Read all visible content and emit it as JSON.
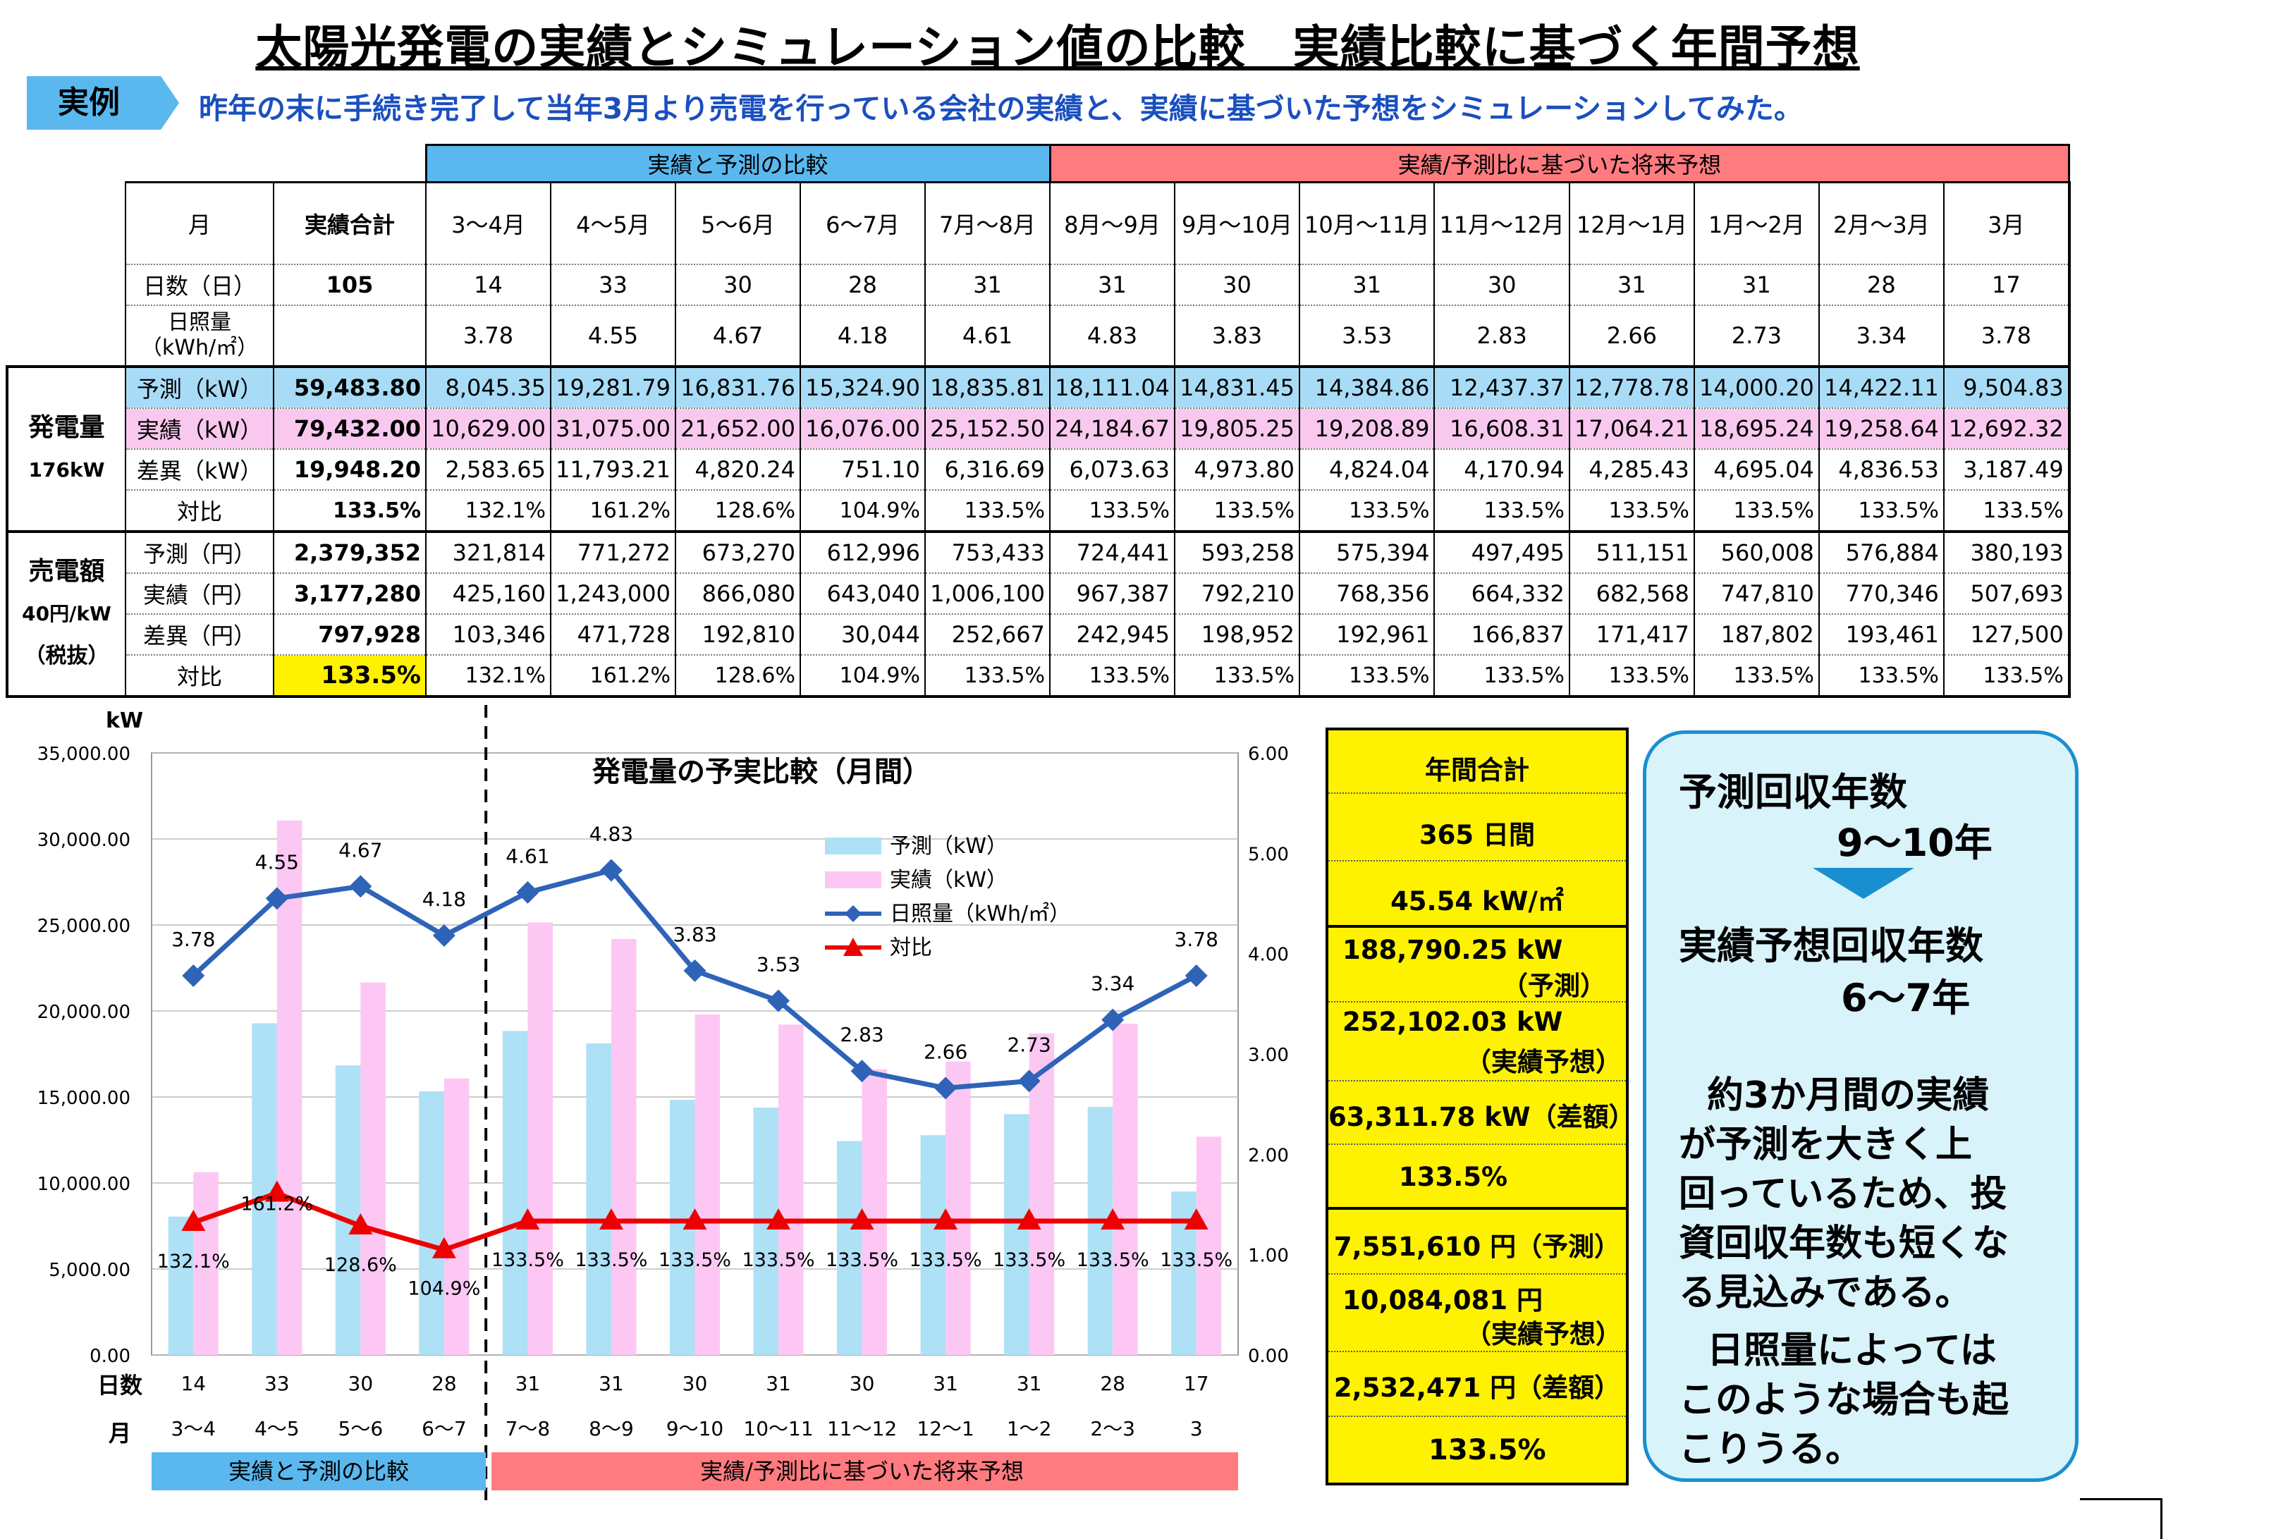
{
  "title": "太陽光発電の実績とシミュレーション値の比較　実績比較に基づく年間予想",
  "example": {
    "tag": "実例",
    "text": "昨年の末に手続き完了して当年3月より売電を行っている会社の実績と、実績に基づいた予想をシミュレーションしてみた。"
  },
  "table": {
    "group_compare": "実績と予測の比較",
    "group_forecast": "実績/予測比に基づいた将来予想",
    "months_label": "月",
    "total_label": "実績合計",
    "months": [
      "3～4月",
      "4～5月",
      "5～6月",
      "6～7月",
      "7月～8月",
      "8月～9月",
      "9月～10月",
      "10月～11月",
      "11月～12月",
      "12月～1月",
      "1月～2月",
      "2月～3月",
      "3月"
    ],
    "days_label": "日数（日）",
    "days_total": "105",
    "days": [
      "14",
      "33",
      "30",
      "28",
      "31",
      "31",
      "30",
      "31",
      "30",
      "31",
      "31",
      "28",
      "17"
    ],
    "irr_label_1": "日照量",
    "irr_label_2": "（kWh/㎡）",
    "irradiance": [
      "3.78",
      "4.55",
      "4.67",
      "4.18",
      "4.61",
      "4.83",
      "3.83",
      "3.53",
      "2.83",
      "2.66",
      "2.73",
      "3.34",
      "3.78"
    ],
    "gen_section": "発電量",
    "gen_sub": "176kW",
    "gen_rows": [
      {
        "label": "予測（kW）",
        "total": "59,483.80",
        "values": [
          "8,045.35",
          "19,281.79",
          "16,831.76",
          "15,324.90",
          "18,835.81",
          "18,111.04",
          "14,831.45",
          "14,384.86",
          "12,437.37",
          "12,778.78",
          "14,000.20",
          "14,422.11",
          "9,504.83"
        ]
      },
      {
        "label": "実績（kW）",
        "total": "79,432.00",
        "values": [
          "10,629.00",
          "31,075.00",
          "21,652.00",
          "16,076.00",
          "25,152.50",
          "24,184.67",
          "19,805.25",
          "19,208.89",
          "16,608.31",
          "17,064.21",
          "18,695.24",
          "19,258.64",
          "12,692.32"
        ]
      },
      {
        "label": "差異（kW）",
        "total": "19,948.20",
        "values": [
          "2,583.65",
          "11,793.21",
          "4,820.24",
          "751.10",
          "6,316.69",
          "6,073.63",
          "4,973.80",
          "4,824.04",
          "4,170.94",
          "4,285.43",
          "4,695.04",
          "4,836.53",
          "3,187.49"
        ]
      },
      {
        "label": "対比",
        "total": "133.5%",
        "values": [
          "132.1%",
          "161.2%",
          "128.6%",
          "104.9%",
          "133.5%",
          "133.5%",
          "133.5%",
          "133.5%",
          "133.5%",
          "133.5%",
          "133.5%",
          "133.5%",
          "133.5%"
        ]
      }
    ],
    "sales_section": "売電額",
    "sales_sub": "40円/kW",
    "sales_tax": "（税抜）",
    "sales_rows": [
      {
        "label": "予測（円）",
        "total": "2,379,352",
        "values": [
          "321,814",
          "771,272",
          "673,270",
          "612,996",
          "753,433",
          "724,441",
          "593,258",
          "575,394",
          "497,495",
          "511,151",
          "560,008",
          "576,884",
          "380,193"
        ]
      },
      {
        "label": "実績（円）",
        "total": "3,177,280",
        "values": [
          "425,160",
          "1,243,000",
          "866,080",
          "643,040",
          "1,006,100",
          "967,387",
          "792,210",
          "768,356",
          "664,332",
          "682,568",
          "747,810",
          "770,346",
          "507,693"
        ]
      },
      {
        "label": "差異（円）",
        "total": "797,928",
        "values": [
          "103,346",
          "471,728",
          "192,810",
          "30,044",
          "252,667",
          "242,945",
          "198,952",
          "192,961",
          "166,837",
          "171,417",
          "187,802",
          "193,461",
          "127,500"
        ]
      },
      {
        "label": "対比",
        "total": "133.5%",
        "values": [
          "132.1%",
          "161.2%",
          "128.6%",
          "104.9%",
          "133.5%",
          "133.5%",
          "133.5%",
          "133.5%",
          "133.5%",
          "133.5%",
          "133.5%",
          "133.5%",
          "133.5%"
        ]
      }
    ]
  },
  "chart_data": {
    "type": "bar",
    "title": "発電量の予実比較（月間）",
    "ylabel": "kW",
    "ylim": [
      0,
      35000
    ],
    "y_ticks": [
      "0.00",
      "5,000.00",
      "10,000.00",
      "15,000.00",
      "20,000.00",
      "25,000.00",
      "30,000.00",
      "35,000.00"
    ],
    "y2lim": [
      0,
      6
    ],
    "y2_ticks": [
      "0.00",
      "1.00",
      "2.00",
      "3.00",
      "4.00",
      "5.00",
      "6.00"
    ],
    "days_label": "日数",
    "month_label": "月",
    "days": [
      "14",
      "33",
      "30",
      "28",
      "31",
      "31",
      "30",
      "31",
      "30",
      "31",
      "31",
      "28",
      "17"
    ],
    "categories": [
      "3～4",
      "4～5",
      "5～6",
      "6～7",
      "7～8",
      "8～9",
      "9～10",
      "10～11",
      "11～12",
      "12～1",
      "1～2",
      "2～3",
      "3"
    ],
    "series": [
      {
        "name": "予測（kW）",
        "type": "bar",
        "color": "#aee0f6",
        "values": [
          8045.35,
          19281.79,
          16831.76,
          15324.9,
          18835.81,
          18111.04,
          14831.45,
          14384.86,
          12437.37,
          12778.78,
          14000.2,
          14422.11,
          9504.83
        ]
      },
      {
        "name": "実績（kW）",
        "type": "bar",
        "color": "#fcc8f3",
        "values": [
          10629.0,
          31075.0,
          21652.0,
          16076.0,
          25152.5,
          24184.67,
          19805.25,
          19208.89,
          16608.31,
          17064.21,
          18695.24,
          19258.64,
          12692.32
        ]
      },
      {
        "name": "日照量（kWh/㎡）",
        "type": "line",
        "axis": "right",
        "color": "#2e63b8",
        "values": [
          3.78,
          4.55,
          4.67,
          4.18,
          4.61,
          4.83,
          3.83,
          3.53,
          2.83,
          2.66,
          2.73,
          3.34,
          3.78
        ],
        "labels": [
          "3.78",
          "4.55",
          "4.67",
          "4.18",
          "4.61",
          "4.83",
          "3.83",
          "3.53",
          "2.83",
          "2.66",
          "2.73",
          "3.34",
          "3.78"
        ]
      },
      {
        "name": "対比",
        "type": "line",
        "axis": "right",
        "color": "#ee0000",
        "values": [
          1.321,
          1.612,
          1.286,
          1.049,
          1.335,
          1.335,
          1.335,
          1.335,
          1.335,
          1.335,
          1.335,
          1.335,
          1.335
        ],
        "labels": [
          "132.1%",
          "161.2%",
          "128.6%",
          "104.9%",
          "133.5%",
          "133.5%",
          "133.5%",
          "133.5%",
          "133.5%",
          "133.5%",
          "133.5%",
          "133.5%",
          "133.5%"
        ]
      }
    ],
    "legend_position": "top-right",
    "group_compare": "実績と予測の比較",
    "group_forecast": "実績/予測比に基づいた将来予想"
  },
  "annual": {
    "header": "年間合計",
    "days": "365 日間",
    "irr": "45.54 kW/㎡",
    "gen_forecast": "188,790.25 kW",
    "gen_forecast_note": "（予測）",
    "gen_actual": "252,102.03 kW",
    "gen_actual_note": "（実績予想）",
    "gen_diff": "63,311.78 kW（差額）",
    "gen_ratio": "133.5%",
    "yen_forecast": "7,551,610 円（予測）",
    "yen_actual": "10,084,081 円",
    "yen_actual_note": "（実績予想）",
    "yen_diff": "2,532,471 円（差額）",
    "yen_ratio": "133.5%"
  },
  "payback": {
    "forecast_label": "予測回収年数",
    "forecast_years": "9～10年",
    "actual_label": "実績予想回収年数",
    "actual_years": "6～7年",
    "note_lines": [
      "約3か月間の実績",
      "が予測を大きく上",
      "回っているため、投",
      "資回収年数も短くな",
      "る見込みである。",
      "日照量によっては",
      "このような場合も起",
      "こりうる。"
    ]
  },
  "colors": {
    "blue_header": "#5ab8ef",
    "red_header": "#ff7b80",
    "forecast_row": "#a8dcf6",
    "actual_row": "#f8c8ee",
    "highlight": "#fff200"
  }
}
